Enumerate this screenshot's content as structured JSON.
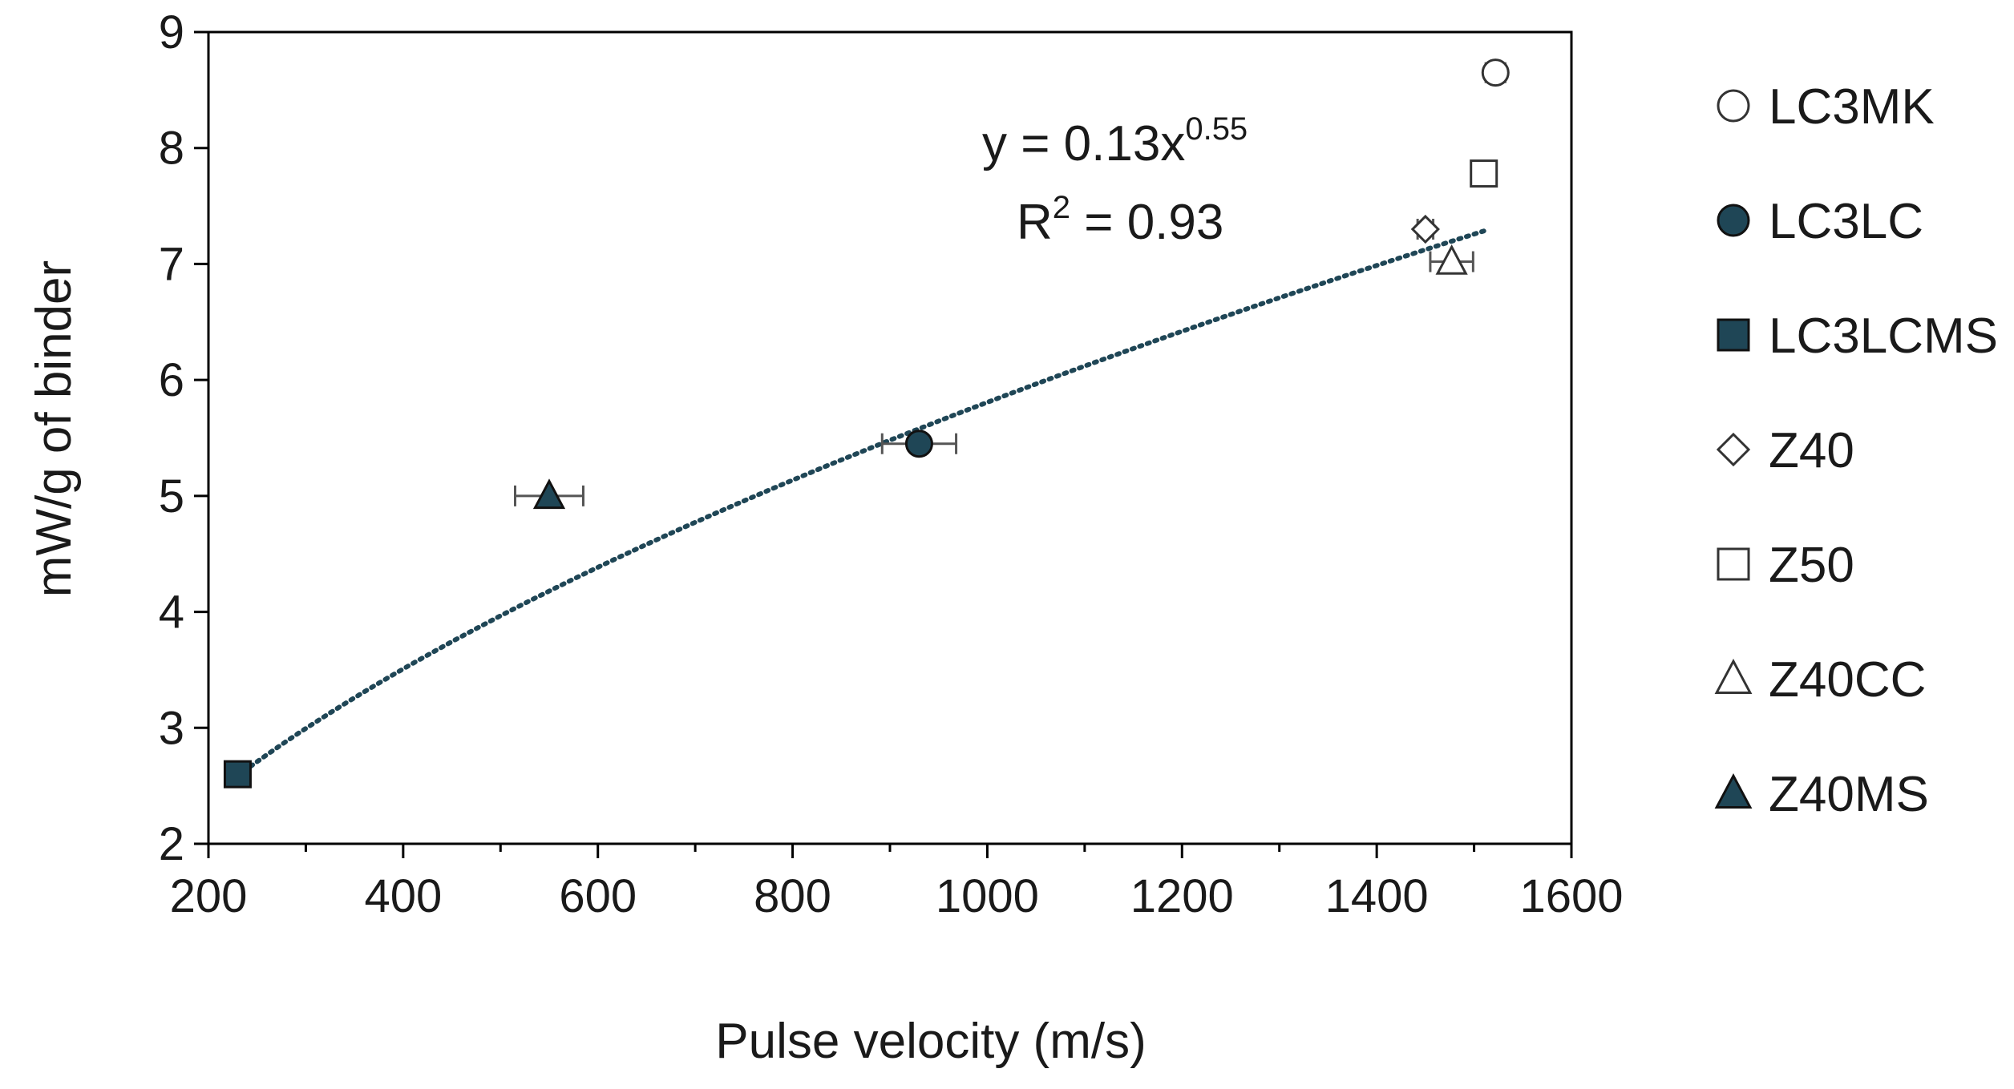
{
  "chart_data": {
    "type": "scatter",
    "xlabel": "Pulse velocity (m/s)",
    "ylabel": "mW/g of binder",
    "xlim": [
      200,
      1600
    ],
    "ylim": [
      2,
      9
    ],
    "x_ticks": [
      200,
      400,
      600,
      800,
      1000,
      1200,
      1400,
      1600
    ],
    "y_ticks": [
      2,
      3,
      4,
      5,
      6,
      7,
      8,
      9
    ],
    "grid": false,
    "legend_position": "right",
    "colors": {
      "filled_marker": "#1f4656",
      "open_marker_stroke": "#333333",
      "trendline": "#1f4656",
      "error_bar": "#555555",
      "axis": "#000000"
    },
    "series": [
      {
        "name": "LC3MK",
        "marker": "circle",
        "filled": false,
        "x": 1522,
        "y": 8.65,
        "xerr": 10
      },
      {
        "name": "LC3LC",
        "marker": "circle",
        "filled": true,
        "x": 930,
        "y": 5.45,
        "xerr": 38
      },
      {
        "name": "LC3LCMS",
        "marker": "square",
        "filled": true,
        "x": 230,
        "y": 2.6,
        "xerr": 6
      },
      {
        "name": "Z40",
        "marker": "diamond",
        "filled": false,
        "x": 1450,
        "y": 7.3,
        "xerr": 8
      },
      {
        "name": "Z50",
        "marker": "square",
        "filled": false,
        "x": 1510,
        "y": 7.78,
        "xerr": 10
      },
      {
        "name": "Z40CC",
        "marker": "triangle",
        "filled": false,
        "x": 1477,
        "y": 7.02,
        "xerr": 22
      },
      {
        "name": "Z40MS",
        "marker": "triangle",
        "filled": true,
        "x": 550,
        "y": 5.0,
        "xerr": 35
      }
    ],
    "trendline": {
      "type": "power",
      "coefficient": 0.13,
      "exponent": 0.55,
      "x_range": [
        230,
        1510
      ],
      "equation_prefix": "y = 0.13x",
      "equation_exponent": "0.55",
      "r2_prefix": "R",
      "r2_superscript": "2",
      "r2_value": " = 0.93"
    }
  }
}
